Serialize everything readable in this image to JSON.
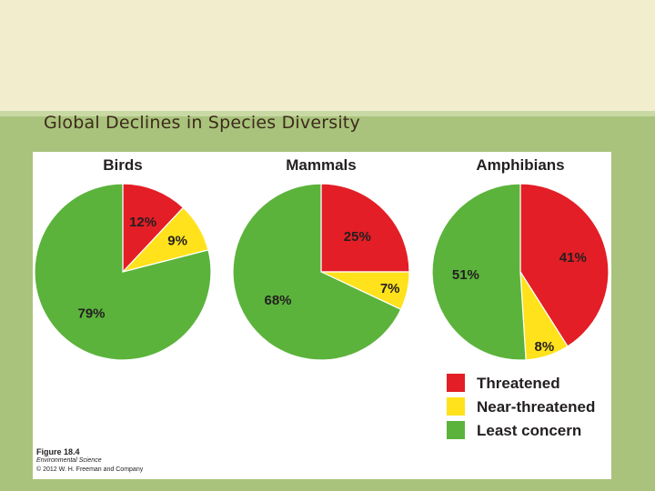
{
  "slide": {
    "title": "Global Declines in Species Diversity"
  },
  "figure": {
    "caption_number": "Figure 18.4",
    "caption_book": "Environmental Science",
    "caption_copyright": "© 2012 W. H. Freeman and Company"
  },
  "colors": {
    "threatened": "#e31e26",
    "near_threatened": "#ffe21c",
    "least_concern": "#5bb33b"
  },
  "chart_data": [
    {
      "type": "pie",
      "title": "Birds",
      "categories": [
        "Threatened",
        "Near-threatened",
        "Least concern"
      ],
      "values": [
        12,
        9,
        79
      ],
      "labels": [
        "12%",
        "9%",
        "79%"
      ]
    },
    {
      "type": "pie",
      "title": "Mammals",
      "categories": [
        "Threatened",
        "Near-threatened",
        "Least concern"
      ],
      "values": [
        25,
        7,
        68
      ],
      "labels": [
        "25%",
        "7%",
        "68%"
      ]
    },
    {
      "type": "pie",
      "title": "Amphibians",
      "categories": [
        "Threatened",
        "Near-threatened",
        "Least concern"
      ],
      "values": [
        41,
        8,
        51
      ],
      "labels": [
        "41%",
        "8%",
        "51%"
      ]
    }
  ],
  "legend": {
    "placement": "bottom-right",
    "items": [
      {
        "label": "Threatened",
        "color_key": "threatened"
      },
      {
        "label": "Near-threatened",
        "color_key": "near_threatened"
      },
      {
        "label": "Least concern",
        "color_key": "least_concern"
      }
    ]
  }
}
